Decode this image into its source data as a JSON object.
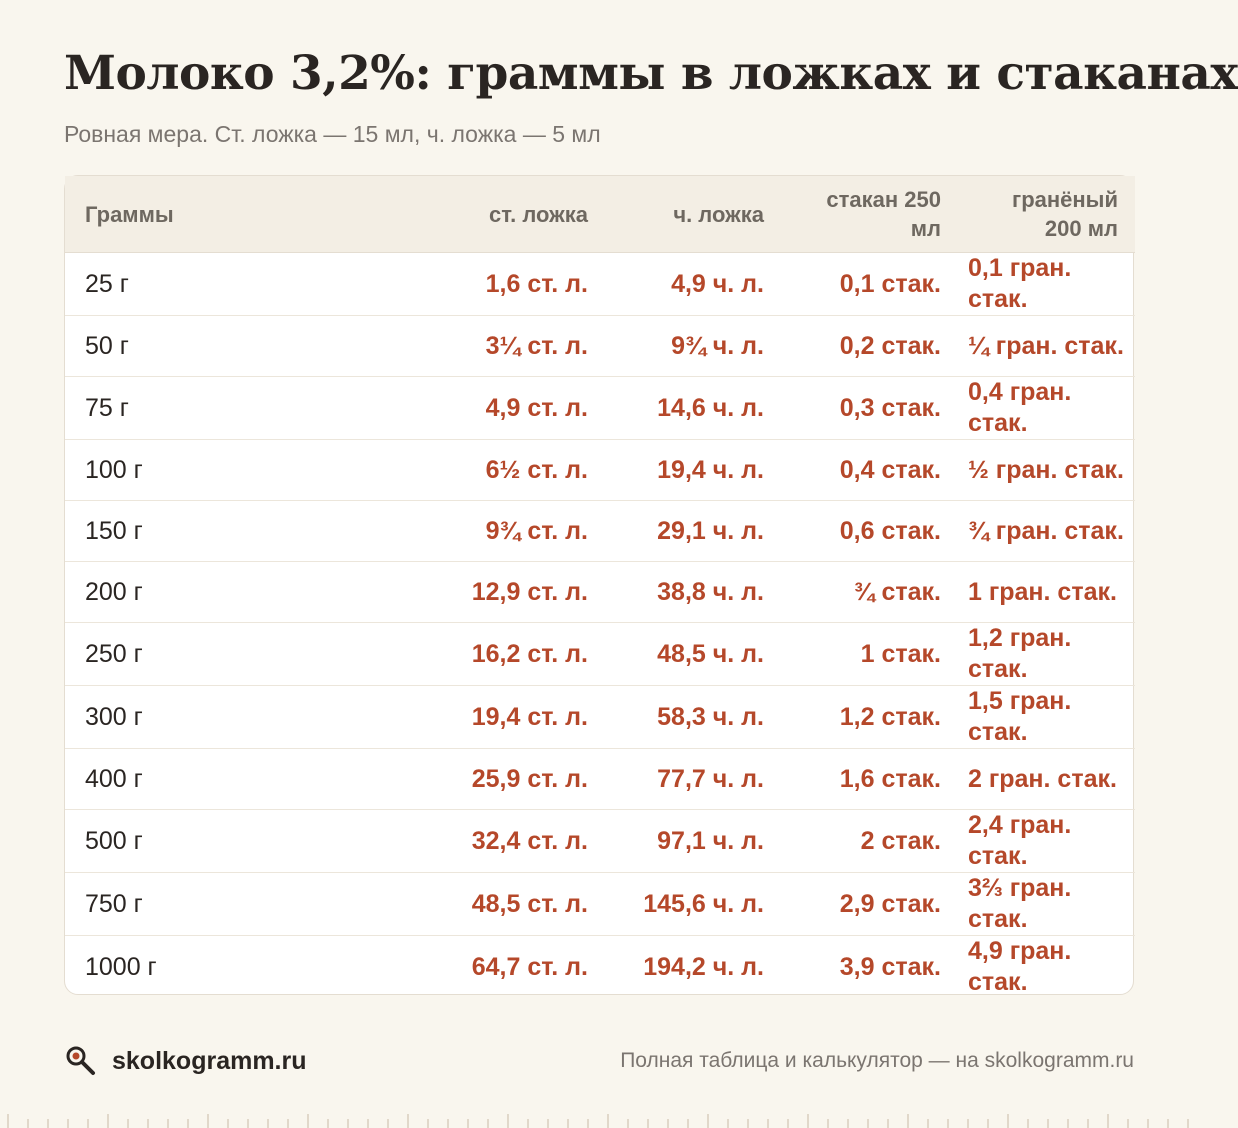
{
  "header": {
    "title": "Молоко 3,2%: граммы в ложках и стаканах",
    "subtitle": "Ровная мера. Ст. ложка — 15 мл, ч. ложка — 5 мл"
  },
  "table": {
    "columns": [
      "Граммы",
      "ст. ложка",
      "ч. ложка",
      "стакан 250 мл",
      "гранёный 200 мл"
    ],
    "rows": [
      [
        "25 г",
        "1,6 ст. л.",
        "4,9 ч. л.",
        "0,1 стак.",
        "0,1 гран. стак."
      ],
      [
        "50 г",
        "3¼ ст. л.",
        "9¾ ч. л.",
        "0,2 стак.",
        "¼ гран. стак."
      ],
      [
        "75 г",
        "4,9 ст. л.",
        "14,6 ч. л.",
        "0,3 стак.",
        "0,4 гран. стак."
      ],
      [
        "100 г",
        "6½ ст. л.",
        "19,4 ч. л.",
        "0,4 стак.",
        "½ гран. стак."
      ],
      [
        "150 г",
        "9¾ ст. л.",
        "29,1 ч. л.",
        "0,6 стак.",
        "¾ гран. стак."
      ],
      [
        "200 г",
        "12,9 ст. л.",
        "38,8 ч. л.",
        "¾ стак.",
        "1 гран. стак."
      ],
      [
        "250 г",
        "16,2 ст. л.",
        "48,5 ч. л.",
        "1 стак.",
        "1,2 гран. стак."
      ],
      [
        "300 г",
        "19,4 ст. л.",
        "58,3 ч. л.",
        "1,2 стак.",
        "1,5 гран. стак."
      ],
      [
        "400 г",
        "25,9 ст. л.",
        "77,7 ч. л.",
        "1,6 стак.",
        "2 гран. стак."
      ],
      [
        "500 г",
        "32,4 ст. л.",
        "97,1 ч. л.",
        "2 стак.",
        "2,4 гран. стак."
      ],
      [
        "750 г",
        "48,5 ст. л.",
        "145,6 ч. л.",
        "2,9 стак.",
        "3⅔ гран. стак."
      ],
      [
        "1000 г",
        "64,7 ст. л.",
        "194,2 ч. л.",
        "3,9 стак.",
        "4,9 гран. стак."
      ]
    ]
  },
  "footer": {
    "brand": "skolkogramm.ru",
    "note": "Полная таблица и калькулятор — на skolkogramm.ru",
    "logo_icon": "magnifier-icon"
  },
  "colors": {
    "background": "#f9f6ee",
    "accent": "#b5482a",
    "header_row": "#f3eee4",
    "text": "#2a2522",
    "muted": "#7b7570"
  }
}
